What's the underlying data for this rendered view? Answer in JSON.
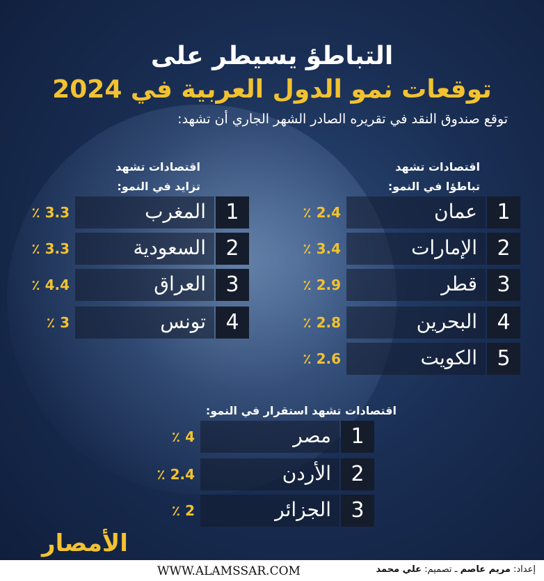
{
  "header": {
    "title_line1": "التباطؤ يسيطر على",
    "title_line2": "توقعات نمو الدول العربية في 2024",
    "subtitle": "توقع صندوق النقد في تقريره الصادر الشهر الجاري أن تشهد:"
  },
  "slowdown": {
    "heading_line1": "اقتصادات تشهد",
    "heading_line2": "تباطؤا في النمو:",
    "rows": [
      {
        "num": "1",
        "name": "عمان",
        "pct": "2.4 ٪"
      },
      {
        "num": "2",
        "name": "الإمارات",
        "pct": "3.4 ٪"
      },
      {
        "num": "3",
        "name": "قطر",
        "pct": "2.9 ٪"
      },
      {
        "num": "4",
        "name": "البحرين",
        "pct": "2.8 ٪"
      },
      {
        "num": "5",
        "name": "الكويت",
        "pct": "2.6 ٪"
      }
    ]
  },
  "growth": {
    "heading_line1": "اقتصادات تشهد",
    "heading_line2": "تزايد في النمو:",
    "rows": [
      {
        "num": "1",
        "name": "المغرب",
        "pct": "3.3 ٪"
      },
      {
        "num": "2",
        "name": "السعودية",
        "pct": "3.3 ٪"
      },
      {
        "num": "3",
        "name": "العراق",
        "pct": "4.4 ٪"
      },
      {
        "num": "4",
        "name": "تونس",
        "pct": "3 ٪"
      }
    ]
  },
  "stable": {
    "heading": "اقتصادات تشهد استقرار في النمو:",
    "rows": [
      {
        "num": "1",
        "name": "مصر",
        "pct": "4 ٪"
      },
      {
        "num": "2",
        "name": "الأردن",
        "pct": "2.4 ٪"
      },
      {
        "num": "3",
        "name": "الجزائر",
        "pct": "2 ٪"
      }
    ]
  },
  "footer": {
    "logo_text": "الأمصار",
    "url": "WWW.ALAMSSAR.COM",
    "credit_prefix": "إعداد:",
    "credit_author": "مريم عاصم",
    "credit_sep": "ـ تصميم:",
    "credit_designer": "علي محمد"
  },
  "colors": {
    "accent": "#f2c230",
    "background": "#1a2f55"
  }
}
